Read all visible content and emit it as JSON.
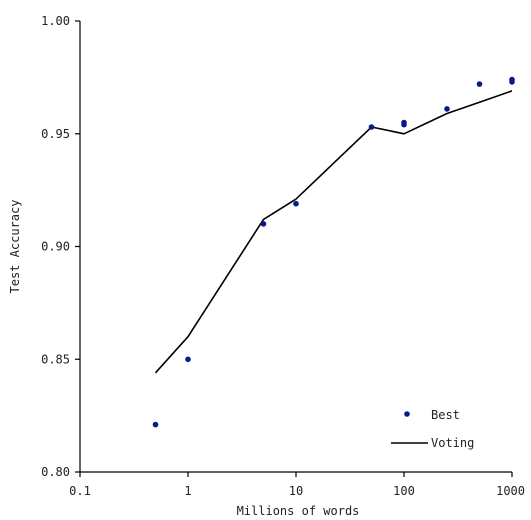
{
  "chart_data": {
    "type": "scatter",
    "title": "",
    "xlabel": "Millions of words",
    "ylabel": "Test Accuracy",
    "xscale": "log",
    "xlim": [
      0.1,
      1000
    ],
    "ylim": [
      0.8,
      1.0
    ],
    "xticks": [
      0.1,
      1,
      10,
      100,
      1000
    ],
    "xtick_labels": [
      "0.1",
      "1",
      "10",
      "100",
      "1000"
    ],
    "yticks": [
      0.8,
      0.85,
      0.9,
      0.95,
      1.0
    ],
    "ytick_labels": [
      "0.80",
      "0.85",
      "0.90",
      "0.95",
      "1.00"
    ],
    "grid": false,
    "legend_position": "bottom-right",
    "series": [
      {
        "name": "Best",
        "style": "markers",
        "color": "#0a1a8c",
        "x": [
          0.5,
          1,
          5,
          10,
          50,
          100,
          100,
          250,
          500,
          1000,
          1000
        ],
        "y": [
          0.821,
          0.85,
          0.91,
          0.919,
          0.953,
          0.955,
          0.954,
          0.961,
          0.972,
          0.974,
          0.973
        ]
      },
      {
        "name": "Voting",
        "style": "line",
        "color": "#000000",
        "x": [
          0.5,
          1,
          5,
          10,
          50,
          100,
          250,
          500,
          1000
        ],
        "y": [
          0.844,
          0.86,
          0.912,
          0.921,
          0.953,
          0.95,
          0.959,
          0.964,
          0.969
        ]
      }
    ]
  }
}
